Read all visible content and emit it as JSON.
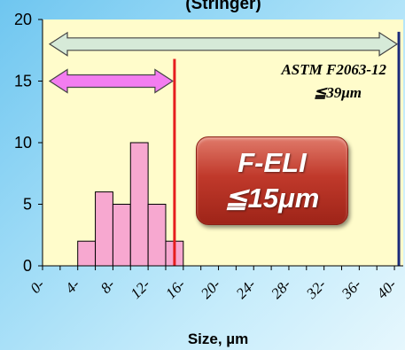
{
  "chart_data": {
    "type": "bar",
    "title": "(Stringer)",
    "xlabel": "Size, µm",
    "ylabel": "",
    "xlim": [
      0,
      41
    ],
    "ylim": [
      0,
      20
    ],
    "yticks": [
      0,
      5,
      10,
      15,
      20
    ],
    "xticks": [
      0,
      4,
      8,
      12,
      16,
      20,
      24,
      28,
      32,
      36,
      40
    ],
    "xtick_labels": [
      "0",
      "4",
      "8",
      "12",
      "16",
      "20",
      "24",
      "28",
      "32",
      "36",
      "40"
    ],
    "bin_width": 2,
    "bins": [
      {
        "start": 4,
        "value": 2
      },
      {
        "start": 6,
        "value": 6
      },
      {
        "start": 8,
        "value": 5
      },
      {
        "start": 10,
        "value": 10
      },
      {
        "start": 12,
        "value": 5
      },
      {
        "start": 14,
        "value": 2
      }
    ],
    "thresholds": [
      {
        "x": 15,
        "color": "#e61e1e"
      },
      {
        "x": 40.5,
        "color": "#1a2a7a"
      }
    ],
    "range_arrows": [
      {
        "from": 0,
        "to": 40.5,
        "y": 18,
        "color": "#d6ead8"
      },
      {
        "from": 0,
        "to": 15,
        "y": 15,
        "color": "#f37df0"
      }
    ],
    "colors": {
      "plot_bg": "#fffccb",
      "bar_fill": "#f7a8d0",
      "bar_stroke": "#000000"
    }
  },
  "annotations": {
    "astm_line1": "ASTM F2063-12",
    "astm_line2": "≦39μm",
    "feli_line1": "F-ELI",
    "feli_line2": "≦15μm"
  }
}
